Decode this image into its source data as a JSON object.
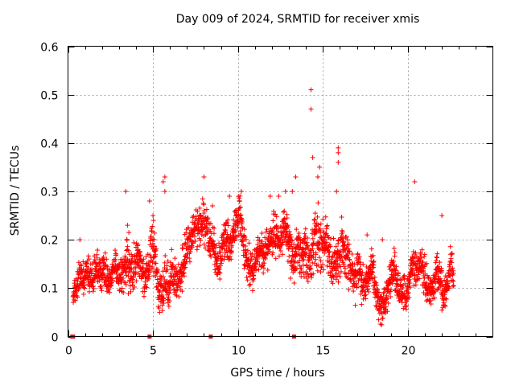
{
  "chart_data": {
    "type": "scatter",
    "title": "Day 009 of 2024, SRMTID for receiver xmis",
    "xlabel": "GPS time / hours",
    "ylabel": "SRMTID / TECUs",
    "xlim": [
      0,
      25
    ],
    "ylim": [
      0,
      0.6
    ],
    "xticks": [
      0,
      5,
      10,
      15,
      20
    ],
    "yticks": [
      0,
      0.1,
      0.2,
      0.3,
      0.4,
      0.5,
      0.6
    ],
    "grid": true,
    "marker": "+",
    "color": "#ff0000",
    "series": [
      {
        "name": "SRMTID",
        "x": [
          0.3,
          0.5,
          0.7,
          0.9,
          1.1,
          1.3,
          1.5,
          1.7,
          1.9,
          2.1,
          2.3,
          2.5,
          2.7,
          2.9,
          3.1,
          3.3,
          3.5,
          3.7,
          3.9,
          4.1,
          4.3,
          4.5,
          4.7,
          4.9,
          5.1,
          5.3,
          5.5,
          5.7,
          5.9,
          6.1,
          6.3,
          6.5,
          6.7,
          6.9,
          7.1,
          7.3,
          7.5,
          7.7,
          7.9,
          8.1,
          8.3,
          8.5,
          8.7,
          8.9,
          9.1,
          9.3,
          9.5,
          9.7,
          9.9,
          10.1,
          10.3,
          10.5,
          10.7,
          10.9,
          11.1,
          11.3,
          11.5,
          11.7,
          11.9,
          12.1,
          12.3,
          12.5,
          12.7,
          12.9,
          13.1,
          13.3,
          13.5,
          13.7,
          13.9,
          14.1,
          14.3,
          14.5,
          14.7,
          14.9,
          15.1,
          15.3,
          15.5,
          15.7,
          15.9,
          16.1,
          16.3,
          16.5,
          16.7,
          16.9,
          17.1,
          17.3,
          17.5,
          17.7,
          17.9,
          18.1,
          18.3,
          18.5,
          18.7,
          18.9,
          19.1,
          19.3,
          19.5,
          19.7,
          19.9,
          20.1,
          20.3,
          20.5,
          20.7,
          20.9,
          21.1,
          21.3,
          21.5,
          21.7,
          21.9,
          22.1,
          22.3,
          22.5,
          22.7
        ],
        "y": [
          0.08,
          0.11,
          0.13,
          0.12,
          0.14,
          0.13,
          0.12,
          0.15,
          0.13,
          0.14,
          0.12,
          0.11,
          0.15,
          0.14,
          0.12,
          0.13,
          0.16,
          0.14,
          0.13,
          0.17,
          0.15,
          0.12,
          0.14,
          0.2,
          0.17,
          0.09,
          0.07,
          0.12,
          0.1,
          0.14,
          0.12,
          0.11,
          0.14,
          0.17,
          0.19,
          0.21,
          0.23,
          0.22,
          0.24,
          0.23,
          0.19,
          0.2,
          0.16,
          0.15,
          0.19,
          0.2,
          0.18,
          0.21,
          0.23,
          0.26,
          0.2,
          0.16,
          0.14,
          0.13,
          0.17,
          0.19,
          0.16,
          0.18,
          0.2,
          0.22,
          0.21,
          0.19,
          0.23,
          0.2,
          0.17,
          0.15,
          0.19,
          0.16,
          0.18,
          0.17,
          0.15,
          0.2,
          0.21,
          0.19,
          0.2,
          0.18,
          0.14,
          0.16,
          0.15,
          0.19,
          0.17,
          0.16,
          0.13,
          0.12,
          0.14,
          0.11,
          0.1,
          0.12,
          0.15,
          0.09,
          0.07,
          0.06,
          0.08,
          0.11,
          0.14,
          0.12,
          0.09,
          0.1,
          0.07,
          0.12,
          0.15,
          0.14,
          0.16,
          0.13,
          0.11,
          0.09,
          0.1,
          0.14,
          0.12,
          0.08,
          0.09,
          0.15,
          0.12
        ],
        "spread": [
          0.025,
          0.03,
          0.03,
          0.03,
          0.03,
          0.03,
          0.03,
          0.03,
          0.03,
          0.03,
          0.03,
          0.03,
          0.03,
          0.035,
          0.035,
          0.04,
          0.05,
          0.04,
          0.035,
          0.035,
          0.035,
          0.035,
          0.04,
          0.05,
          0.04,
          0.04,
          0.04,
          0.04,
          0.04,
          0.04,
          0.035,
          0.035,
          0.035,
          0.035,
          0.035,
          0.035,
          0.04,
          0.04,
          0.04,
          0.04,
          0.035,
          0.035,
          0.035,
          0.035,
          0.035,
          0.035,
          0.035,
          0.035,
          0.04,
          0.04,
          0.035,
          0.035,
          0.035,
          0.035,
          0.035,
          0.035,
          0.035,
          0.035,
          0.035,
          0.04,
          0.04,
          0.04,
          0.04,
          0.04,
          0.04,
          0.04,
          0.04,
          0.04,
          0.04,
          0.04,
          0.04,
          0.05,
          0.05,
          0.05,
          0.05,
          0.04,
          0.04,
          0.04,
          0.04,
          0.05,
          0.04,
          0.04,
          0.035,
          0.035,
          0.035,
          0.03,
          0.03,
          0.03,
          0.04,
          0.03,
          0.03,
          0.025,
          0.03,
          0.03,
          0.035,
          0.03,
          0.03,
          0.03,
          0.03,
          0.03,
          0.035,
          0.035,
          0.04,
          0.035,
          0.03,
          0.03,
          0.03,
          0.035,
          0.03,
          0.03,
          0.03,
          0.035,
          0.03
        ],
        "outliers": [
          [
            14.3,
            0.51
          ],
          [
            14.3,
            0.47
          ],
          [
            15.9,
            0.39
          ],
          [
            15.9,
            0.38
          ],
          [
            14.4,
            0.37
          ],
          [
            15.9,
            0.36
          ],
          [
            14.8,
            0.35
          ],
          [
            14.7,
            0.33
          ],
          [
            13.4,
            0.33
          ],
          [
            5.7,
            0.33
          ],
          [
            5.6,
            0.32
          ],
          [
            8.0,
            0.33
          ],
          [
            20.4,
            0.32
          ],
          [
            3.4,
            0.3
          ],
          [
            9.5,
            0.29
          ],
          [
            13.2,
            0.3
          ],
          [
            10.2,
            0.3
          ],
          [
            15.8,
            0.3
          ],
          [
            12.8,
            0.3
          ],
          [
            5.7,
            0.3
          ],
          [
            0.7,
            0.2
          ],
          [
            3.5,
            0.23
          ],
          [
            5.0,
            0.25
          ],
          [
            22.0,
            0.25
          ],
          [
            17.6,
            0.21
          ],
          [
            18.5,
            0.2
          ],
          [
            12.4,
            0.29
          ],
          [
            8.5,
            0.27
          ],
          [
            11.9,
            0.29
          ],
          [
            4.8,
            0.28
          ]
        ],
        "baseline_markers": [
          0.25,
          0.3,
          4.8,
          8.4,
          13.3
        ]
      }
    ]
  }
}
